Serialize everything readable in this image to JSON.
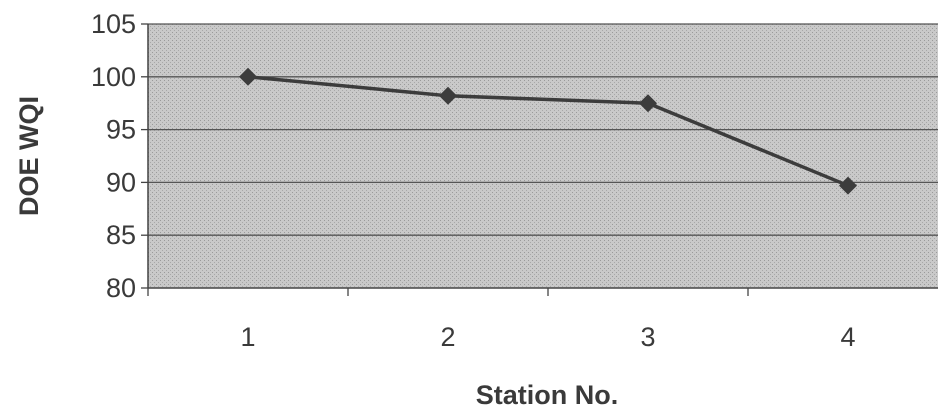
{
  "chart_data": {
    "type": "line",
    "title": "",
    "xlabel": "Station No.",
    "ylabel": "DOE  WQI",
    "categories": [
      "1",
      "2",
      "3",
      "4"
    ],
    "series": [
      {
        "values": [
          100,
          98.2,
          97.5,
          89.7
        ]
      }
    ],
    "ylim": [
      80,
      105
    ],
    "yticks": [
      "80",
      "85",
      "90",
      "95",
      "100",
      "105"
    ],
    "grid": true,
    "legend": "none",
    "colors": {
      "plot_area": "#c4c4c4",
      "line": "#3c3c3c",
      "marker": "#3c3c3c",
      "gridline": "#555555",
      "axis": "#444444"
    }
  }
}
